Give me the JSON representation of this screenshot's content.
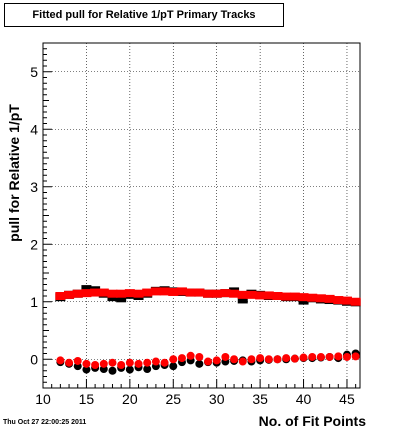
{
  "chart_data": {
    "type": "scatter",
    "title": "Fitted pull for Relative 1/pT Primary Tracks",
    "xlabel": "No. of Fit Points",
    "ylabel": "pull for Relative 1/pT",
    "xlim": [
      10,
      46.5
    ],
    "ylim": [
      -0.5,
      5.5
    ],
    "xticks": [
      10,
      15,
      20,
      25,
      30,
      35,
      40,
      45
    ],
    "yticks": [
      0,
      1,
      2,
      3,
      4,
      5
    ],
    "grid": true,
    "series": [
      {
        "marker": "square",
        "color": "#000000",
        "x": [
          12,
          13,
          14,
          15,
          16,
          17,
          18,
          19,
          20,
          21,
          22,
          23,
          24,
          25,
          26,
          27,
          28,
          29,
          30,
          31,
          32,
          33,
          34,
          35,
          36,
          37,
          38,
          39,
          40,
          41,
          42,
          43,
          44,
          45,
          46
        ],
        "y": [
          1.08,
          1.12,
          1.14,
          1.22,
          1.2,
          1.14,
          1.08,
          1.06,
          1.12,
          1.1,
          1.14,
          1.19,
          1.2,
          1.18,
          1.17,
          1.16,
          1.16,
          1.14,
          1.14,
          1.15,
          1.18,
          1.04,
          1.14,
          1.12,
          1.1,
          1.1,
          1.08,
          1.08,
          1.02,
          1.06,
          1.04,
          1.03,
          1.02,
          1.0,
          0.99
        ]
      },
      {
        "marker": "square",
        "color": "#ff0000",
        "x": [
          12,
          13,
          14,
          15,
          16,
          17,
          18,
          19,
          20,
          21,
          22,
          23,
          24,
          25,
          26,
          27,
          28,
          29,
          30,
          31,
          32,
          33,
          34,
          35,
          36,
          37,
          38,
          39,
          40,
          41,
          42,
          43,
          44,
          45,
          46
        ],
        "y": [
          1.1,
          1.12,
          1.14,
          1.15,
          1.16,
          1.16,
          1.14,
          1.14,
          1.15,
          1.14,
          1.16,
          1.18,
          1.18,
          1.17,
          1.18,
          1.16,
          1.16,
          1.14,
          1.14,
          1.15,
          1.14,
          1.12,
          1.12,
          1.11,
          1.11,
          1.1,
          1.09,
          1.09,
          1.08,
          1.07,
          1.06,
          1.05,
          1.03,
          1.02,
          1.0
        ]
      },
      {
        "marker": "circle",
        "color": "#000000",
        "x": [
          12,
          13,
          14,
          15,
          16,
          17,
          18,
          19,
          20,
          21,
          22,
          23,
          24,
          25,
          26,
          27,
          28,
          29,
          30,
          31,
          32,
          33,
          34,
          35,
          36,
          37,
          38,
          39,
          40,
          41,
          42,
          43,
          44,
          45,
          46
        ],
        "y": [
          -0.05,
          -0.08,
          -0.12,
          -0.18,
          -0.15,
          -0.17,
          -0.2,
          -0.15,
          -0.18,
          -0.14,
          -0.17,
          -0.12,
          -0.1,
          -0.12,
          -0.05,
          -0.02,
          -0.08,
          -0.05,
          -0.06,
          -0.04,
          -0.03,
          -0.02,
          -0.04,
          -0.02,
          -0.01,
          0.0,
          0.0,
          0.01,
          0.02,
          0.02,
          0.03,
          0.04,
          0.02,
          0.08,
          0.1
        ]
      },
      {
        "marker": "circle",
        "color": "#ff0000",
        "x": [
          12,
          13,
          14,
          15,
          16,
          17,
          18,
          19,
          20,
          21,
          22,
          23,
          24,
          25,
          26,
          27,
          28,
          29,
          30,
          31,
          32,
          33,
          34,
          35,
          36,
          37,
          38,
          39,
          40,
          41,
          42,
          43,
          44,
          45,
          46
        ],
        "y": [
          -0.02,
          -0.06,
          -0.03,
          -0.08,
          -0.1,
          -0.08,
          -0.06,
          -0.1,
          -0.06,
          -0.08,
          -0.06,
          -0.04,
          -0.06,
          0.0,
          0.02,
          0.06,
          0.04,
          -0.04,
          -0.02,
          0.04,
          0.0,
          -0.04,
          0.0,
          0.02,
          0.0,
          0.0,
          0.02,
          0.01,
          0.03,
          0.04,
          0.04,
          0.04,
          0.05,
          0.04,
          0.05
        ]
      }
    ]
  },
  "footer": {
    "timestamp": "Thu Oct 27 22:00:25 2011"
  }
}
